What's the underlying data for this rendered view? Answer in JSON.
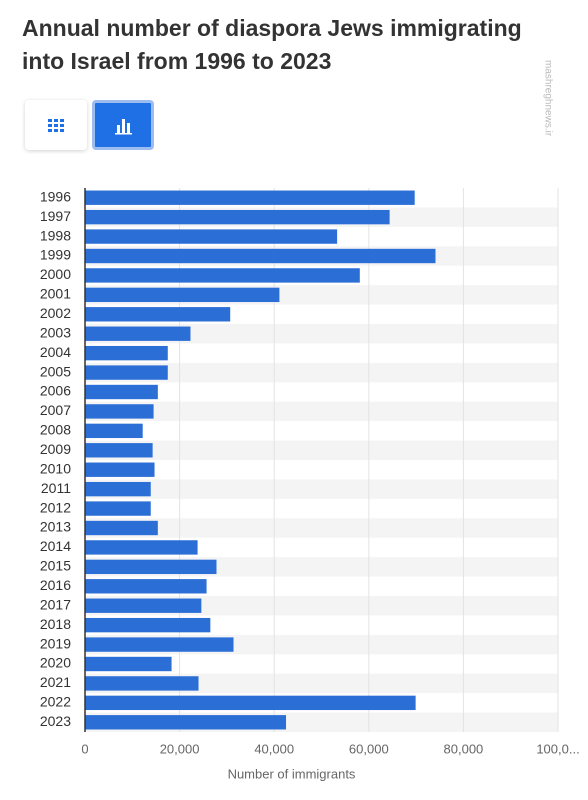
{
  "title": "Annual number of diaspora Jews immigrating into Israel from 1996 to 2023",
  "watermark": "mashreghnews.ir",
  "chart_data": {
    "type": "bar",
    "orientation": "horizontal",
    "categories": [
      "1996",
      "1997",
      "1998",
      "1999",
      "2000",
      "2001",
      "2002",
      "2003",
      "2004",
      "2005",
      "2006",
      "2007",
      "2008",
      "2009",
      "2010",
      "2011",
      "2012",
      "2013",
      "2014",
      "2015",
      "2016",
      "2017",
      "2018",
      "2019",
      "2020",
      "2021",
      "2022",
      "2023"
    ],
    "values": [
      69700,
      64400,
      53300,
      74100,
      58100,
      41100,
      30700,
      22300,
      17500,
      17500,
      15400,
      14500,
      12200,
      14300,
      14700,
      13900,
      13900,
      15400,
      23800,
      27800,
      25700,
      24600,
      26500,
      31400,
      18300,
      24000,
      69900,
      42500
    ],
    "color": "#2b6fd6",
    "xlabel": "Number of immigrants",
    "xlim": [
      0,
      100000
    ],
    "xticks": [
      0,
      {
        "value": 20000,
        "label": "20,000"
      },
      {
        "value": 40000,
        "label": "40,000"
      },
      {
        "value": 60000,
        "label": "60,000"
      },
      {
        "value": 80000,
        "label": "80,000"
      },
      {
        "value": 100000,
        "label": "100,0..."
      }
    ],
    "grid": true
  }
}
